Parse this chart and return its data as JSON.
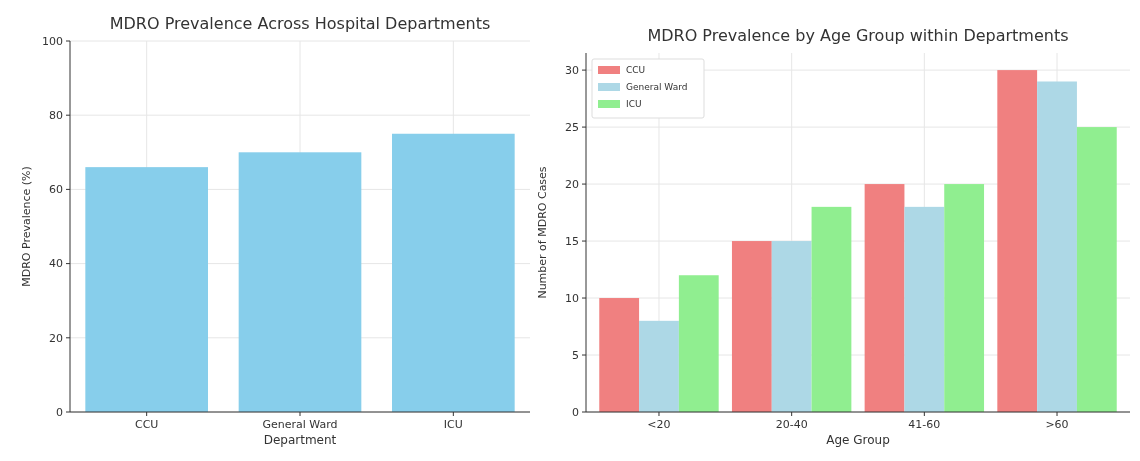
{
  "chart_data": [
    {
      "type": "bar",
      "title": "MDRO Prevalence Across Hospital Departments",
      "xlabel": "Department",
      "ylabel": "MDRO Prevalence (%)",
      "categories": [
        "CCU",
        "General Ward",
        "ICU"
      ],
      "values": [
        66,
        70,
        75
      ],
      "color": "#87ceeb",
      "ylim": [
        0,
        100
      ],
      "yticks": [
        0,
        20,
        40,
        60,
        80,
        100
      ],
      "grid": true
    },
    {
      "type": "bar",
      "title": "MDRO Prevalence by Age Group within Departments",
      "xlabel": "Age Group",
      "ylabel": "Number of MDRO Cases",
      "categories": [
        "<20",
        "20-40",
        "41-60",
        ">60"
      ],
      "series": [
        {
          "name": "CCU",
          "color": "#f08080",
          "values": [
            10,
            15,
            20,
            30
          ]
        },
        {
          "name": "General Ward",
          "color": "#add8e6",
          "values": [
            8,
            15,
            18,
            29
          ]
        },
        {
          "name": "ICU",
          "color": "#90ee90",
          "values": [
            12,
            18,
            20,
            25
          ]
        }
      ],
      "ylim": [
        0,
        31.5
      ],
      "yticks": [
        0,
        5,
        10,
        15,
        20,
        25,
        30
      ],
      "grid": true,
      "legend": "top left"
    }
  ]
}
